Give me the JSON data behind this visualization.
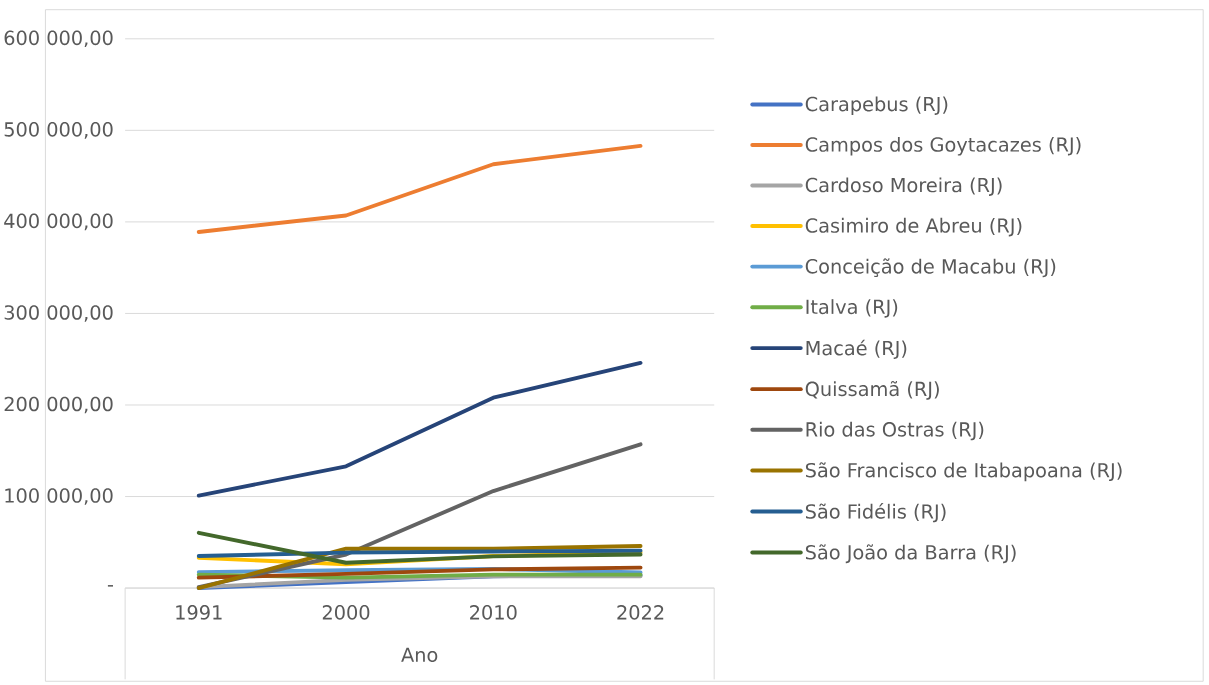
{
  "chart_data": {
    "type": "line",
    "xlabel": "Ano",
    "categories": [
      "1991",
      "2000",
      "2010",
      "2022"
    ],
    "series": [
      {
        "name": "Carapebus (RJ)",
        "color": "#4472c4",
        "values": [
          0,
          6500,
          13000,
          14000
        ]
      },
      {
        "name": "Campos dos Goytacazes (RJ)",
        "color": "#ed7d31",
        "values": [
          389000,
          407000,
          463000,
          483000
        ]
      },
      {
        "name": "Cardoso Moreira (RJ)",
        "color": "#a5a5a5",
        "values": [
          1000,
          9000,
          13000,
          13000
        ]
      },
      {
        "name": "Casimiro de Abreu (RJ)",
        "color": "#ffc000",
        "values": [
          33000,
          26000,
          35000,
          39000
        ]
      },
      {
        "name": "Conceição de Macabu (RJ)",
        "color": "#5b9bd5",
        "values": [
          17500,
          19500,
          21000,
          17000
        ]
      },
      {
        "name": "Italva (RJ)",
        "color": "#70ad47",
        "values": [
          14700,
          11400,
          14700,
          14700
        ]
      },
      {
        "name": "Macaé (RJ)",
        "color": "#264478",
        "values": [
          101000,
          133000,
          208000,
          246000
        ]
      },
      {
        "name": "Quissamã (RJ)",
        "color": "#9e480e",
        "values": [
          11400,
          15500,
          20400,
          22400
        ]
      },
      {
        "name": "Rio das Ostras (RJ)",
        "color": "#636363",
        "values": [
          1000,
          36700,
          106000,
          157000
        ]
      },
      {
        "name": "São Francisco de Itabapoana (RJ)",
        "color": "#997300",
        "values": [
          0,
          43000,
          43000,
          46000
        ]
      },
      {
        "name": "São Fidélis (RJ)",
        "color": "#255e91",
        "values": [
          35000,
          38800,
          40000,
          40800
        ]
      },
      {
        "name": "São João da Barra (RJ)",
        "color": "#43682b",
        "values": [
          60400,
          27700,
          34700,
          36700
        ]
      }
    ],
    "ylim": [
      0,
      600000
    ],
    "yticks": [
      {
        "value": 0,
        "label": "-"
      },
      {
        "value": 100000,
        "label": "100 000,00"
      },
      {
        "value": 200000,
        "label": "200 000,00"
      },
      {
        "value": 300000,
        "label": "300 000,00"
      },
      {
        "value": 400000,
        "label": "400 000,00"
      },
      {
        "value": 500000,
        "label": "500 000,00"
      },
      {
        "value": 600000,
        "label": "600 000,00"
      }
    ],
    "grid": "y",
    "legend": "right",
    "marker": "none",
    "line_style": "solid"
  }
}
